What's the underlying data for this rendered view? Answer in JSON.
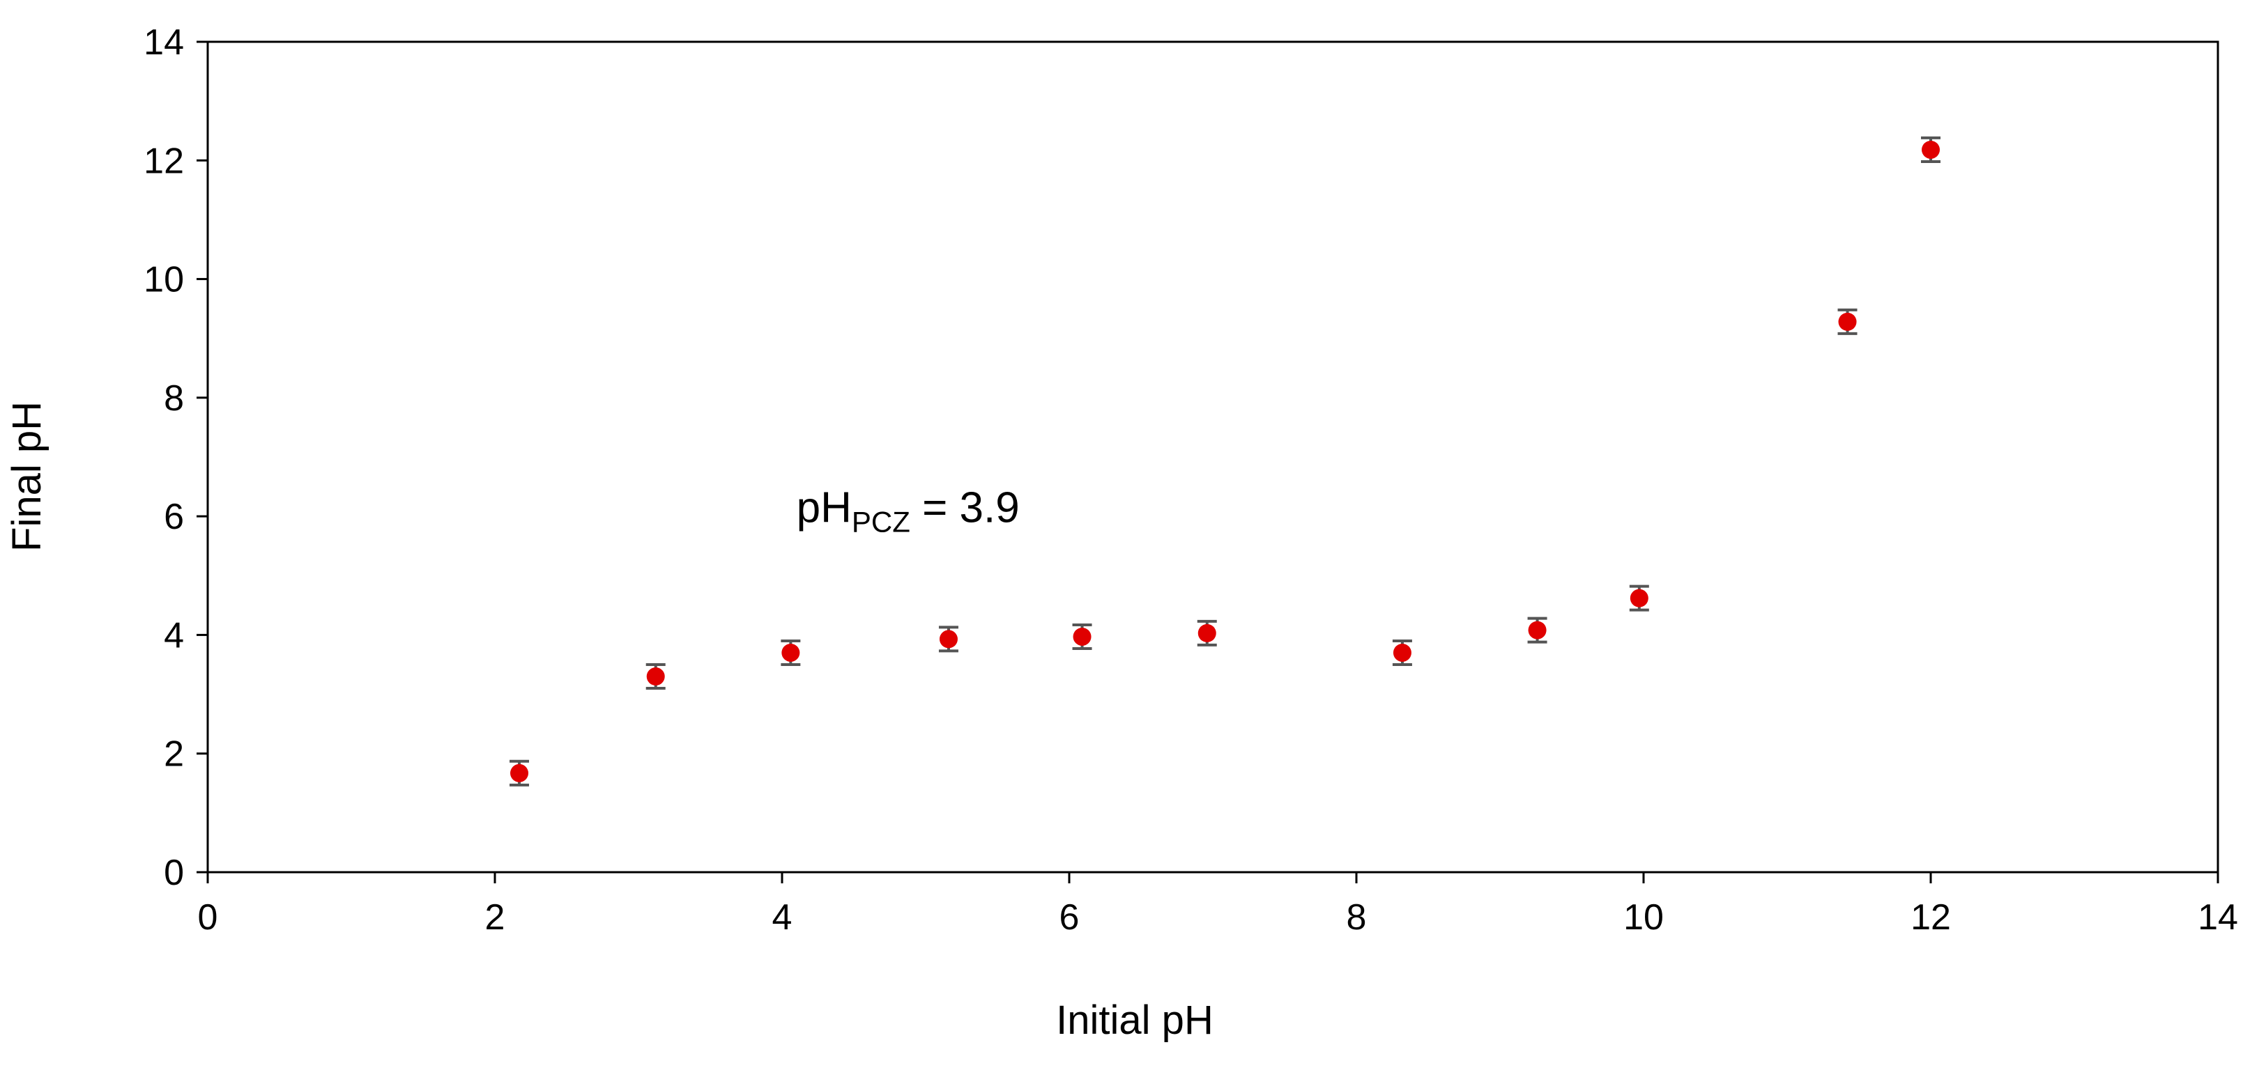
{
  "chart_data": {
    "type": "scatter",
    "title": "",
    "xlabel": "Initial pH",
    "ylabel": "Final pH",
    "xlim": [
      0,
      14
    ],
    "ylim": [
      0,
      14
    ],
    "xticks": [
      0,
      2,
      4,
      6,
      8,
      10,
      12,
      14
    ],
    "yticks": [
      0,
      2,
      4,
      6,
      8,
      10,
      12,
      14
    ],
    "xtick_labels": [
      "0",
      "2",
      "4",
      "6",
      "8",
      "10",
      "12",
      "14"
    ],
    "ytick_labels": [
      "0",
      "2",
      "4",
      "6",
      "8",
      "10",
      "12",
      "14"
    ],
    "grid": false,
    "legend": "none",
    "series": [
      {
        "color": "#e00000",
        "errorbar_color": "#555555",
        "points": [
          {
            "x": 2.17,
            "y": 1.67,
            "err": 0.2
          },
          {
            "x": 3.12,
            "y": 3.3,
            "err": 0.2
          },
          {
            "x": 4.06,
            "y": 3.7,
            "err": 0.2
          },
          {
            "x": 5.16,
            "y": 3.93,
            "err": 0.2
          },
          {
            "x": 6.09,
            "y": 3.97,
            "err": 0.2
          },
          {
            "x": 6.96,
            "y": 4.03,
            "err": 0.2
          },
          {
            "x": 8.32,
            "y": 3.7,
            "err": 0.2
          },
          {
            "x": 9.26,
            "y": 4.08,
            "err": 0.2
          },
          {
            "x": 9.97,
            "y": 4.62,
            "err": 0.2
          },
          {
            "x": 11.42,
            "y": 9.28,
            "err": 0.2
          },
          {
            "x": 12.0,
            "y": 12.18,
            "err": 0.2
          }
        ]
      }
    ],
    "annotation": {
      "main": "pH",
      "subscript": "PCZ",
      "suffix": " = 3.9",
      "x": 4.1,
      "y": 5.9
    }
  }
}
